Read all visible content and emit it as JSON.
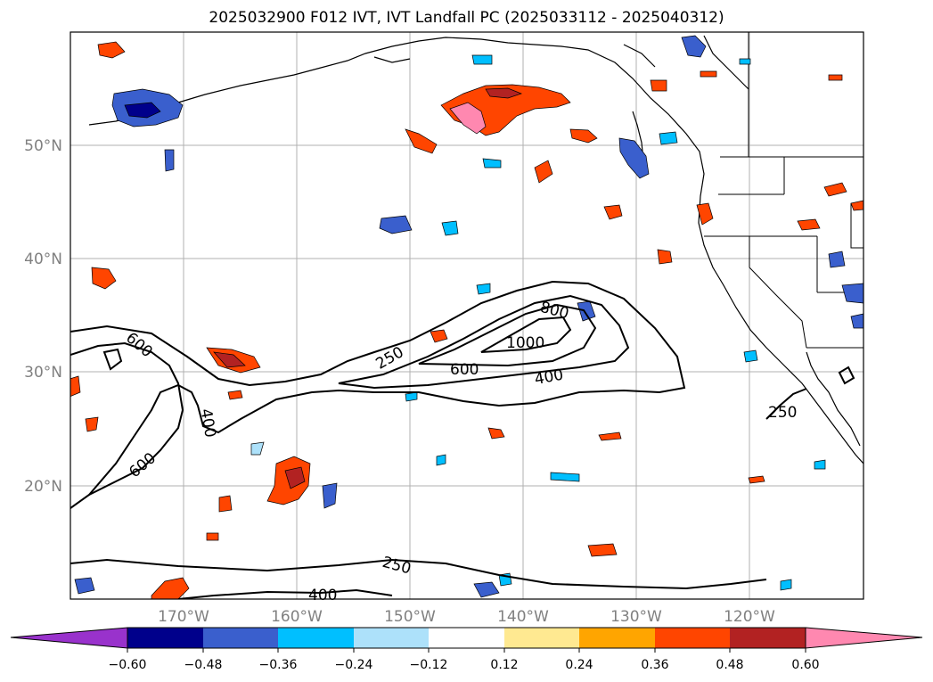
{
  "title": "2025032900 F012 IVT, IVT Landfall PC (2025033112 - 2025040312)",
  "map": {
    "lon_labels": [
      "170°W",
      "160°W",
      "150°W",
      "140°W",
      "130°W",
      "120°W"
    ],
    "lat_labels": [
      "50°N",
      "40°N",
      "30°N",
      "20°N"
    ],
    "contour_labels": [
      "250",
      "800",
      "1000",
      "600",
      "400",
      "250",
      "600",
      "400",
      "600",
      "250",
      "400"
    ],
    "axis_label_color": "#808080"
  },
  "colorbar": {
    "ticks": [
      "−0.60",
      "−0.48",
      "−0.36",
      "−0.24",
      "−0.12",
      "0.12",
      "0.24",
      "0.36",
      "0.48",
      "0.60"
    ],
    "colors": [
      "#9932CC",
      "#00008B",
      "#3A5FCD",
      "#00BFFF",
      "#ADE1FA",
      "#FFFFFF",
      "#FFE991",
      "#FFA500",
      "#FF4500",
      "#B22222",
      "#FF88B0"
    ]
  }
}
